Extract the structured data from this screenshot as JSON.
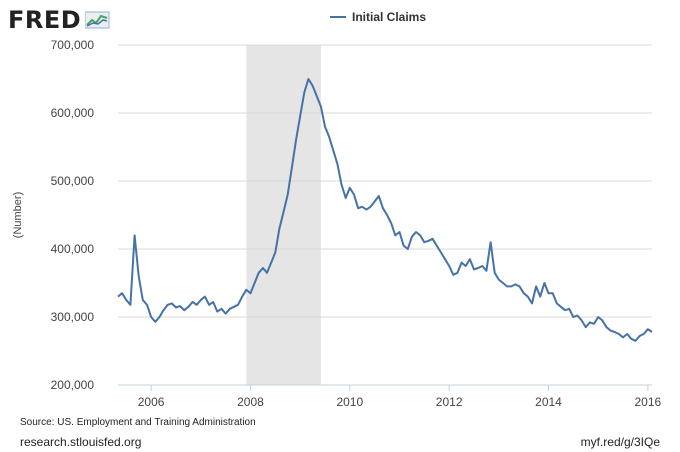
{
  "logo": {
    "text": "FRED",
    "icon": "fred-chart-logo-icon"
  },
  "legend": {
    "label": "Initial Claims",
    "color": "#4572a7"
  },
  "source": "Source: US. Employment and Training Administration",
  "footer": {
    "left": "research.stlouisfed.org",
    "right": "myf.red/g/3IQe"
  },
  "chart_data": {
    "type": "line",
    "title": "",
    "xlabel": "",
    "ylabel": "(Number)",
    "x_ticks": [
      "2006",
      "2008",
      "2010",
      "2012",
      "2014",
      "2016"
    ],
    "y_ticks": [
      "200,000",
      "300,000",
      "400,000",
      "500,000",
      "600,000",
      "700,000"
    ],
    "xlim": [
      "2005-05",
      "2016-02"
    ],
    "ylim": [
      200000,
      700000
    ],
    "grid": "horizontal",
    "legend_position": "top",
    "recession_shading": [
      [
        "2007-12",
        "2009-06"
      ]
    ],
    "series": [
      {
        "name": "Initial Claims",
        "color": "#4572a7",
        "points": [
          [
            "2005-05",
            330000
          ],
          [
            "2005-06",
            335000
          ],
          [
            "2005-07",
            325000
          ],
          [
            "2005-08",
            318000
          ],
          [
            "2005-09",
            420000
          ],
          [
            "2005-10",
            360000
          ],
          [
            "2005-11",
            325000
          ],
          [
            "2005-12",
            318000
          ],
          [
            "2006-01",
            300000
          ],
          [
            "2006-02",
            293000
          ],
          [
            "2006-03",
            300000
          ],
          [
            "2006-04",
            310000
          ],
          [
            "2006-05",
            318000
          ],
          [
            "2006-06",
            320000
          ],
          [
            "2006-07",
            314000
          ],
          [
            "2006-08",
            316000
          ],
          [
            "2006-09",
            310000
          ],
          [
            "2006-10",
            315000
          ],
          [
            "2006-11",
            322000
          ],
          [
            "2006-12",
            318000
          ],
          [
            "2007-01",
            325000
          ],
          [
            "2007-02",
            330000
          ],
          [
            "2007-03",
            318000
          ],
          [
            "2007-04",
            322000
          ],
          [
            "2007-05",
            308000
          ],
          [
            "2007-06",
            312000
          ],
          [
            "2007-07",
            305000
          ],
          [
            "2007-08",
            312000
          ],
          [
            "2007-09",
            315000
          ],
          [
            "2007-10",
            318000
          ],
          [
            "2007-11",
            330000
          ],
          [
            "2007-12",
            340000
          ],
          [
            "2008-01",
            335000
          ],
          [
            "2008-02",
            350000
          ],
          [
            "2008-03",
            365000
          ],
          [
            "2008-04",
            372000
          ],
          [
            "2008-05",
            365000
          ],
          [
            "2008-06",
            380000
          ],
          [
            "2008-07",
            395000
          ],
          [
            "2008-08",
            430000
          ],
          [
            "2008-09",
            455000
          ],
          [
            "2008-10",
            480000
          ],
          [
            "2008-11",
            520000
          ],
          [
            "2008-12",
            560000
          ],
          [
            "2009-01",
            595000
          ],
          [
            "2009-02",
            630000
          ],
          [
            "2009-03",
            650000
          ],
          [
            "2009-04",
            640000
          ],
          [
            "2009-05",
            625000
          ],
          [
            "2009-06",
            610000
          ],
          [
            "2009-07",
            580000
          ],
          [
            "2009-08",
            565000
          ],
          [
            "2009-09",
            545000
          ],
          [
            "2009-10",
            525000
          ],
          [
            "2009-11",
            495000
          ],
          [
            "2009-12",
            475000
          ],
          [
            "2010-01",
            490000
          ],
          [
            "2010-02",
            480000
          ],
          [
            "2010-03",
            460000
          ],
          [
            "2010-04",
            462000
          ],
          [
            "2010-05",
            458000
          ],
          [
            "2010-06",
            462000
          ],
          [
            "2010-07",
            470000
          ],
          [
            "2010-08",
            478000
          ],
          [
            "2010-09",
            460000
          ],
          [
            "2010-10",
            450000
          ],
          [
            "2010-11",
            438000
          ],
          [
            "2010-12",
            420000
          ],
          [
            "2011-01",
            425000
          ],
          [
            "2011-02",
            405000
          ],
          [
            "2011-03",
            400000
          ],
          [
            "2011-04",
            418000
          ],
          [
            "2011-05",
            425000
          ],
          [
            "2011-06",
            420000
          ],
          [
            "2011-07",
            410000
          ],
          [
            "2011-08",
            412000
          ],
          [
            "2011-09",
            415000
          ],
          [
            "2011-10",
            405000
          ],
          [
            "2011-11",
            395000
          ],
          [
            "2011-12",
            385000
          ],
          [
            "2012-01",
            375000
          ],
          [
            "2012-02",
            362000
          ],
          [
            "2012-03",
            365000
          ],
          [
            "2012-04",
            380000
          ],
          [
            "2012-05",
            375000
          ],
          [
            "2012-06",
            385000
          ],
          [
            "2012-07",
            370000
          ],
          [
            "2012-08",
            372000
          ],
          [
            "2012-09",
            375000
          ],
          [
            "2012-10",
            368000
          ],
          [
            "2012-11",
            410000
          ],
          [
            "2012-12",
            365000
          ],
          [
            "2013-01",
            355000
          ],
          [
            "2013-02",
            350000
          ],
          [
            "2013-03",
            345000
          ],
          [
            "2013-04",
            345000
          ],
          [
            "2013-05",
            348000
          ],
          [
            "2013-06",
            345000
          ],
          [
            "2013-07",
            335000
          ],
          [
            "2013-08",
            330000
          ],
          [
            "2013-09",
            320000
          ],
          [
            "2013-10",
            345000
          ],
          [
            "2013-11",
            330000
          ],
          [
            "2013-12",
            350000
          ],
          [
            "2014-01",
            335000
          ],
          [
            "2014-02",
            335000
          ],
          [
            "2014-03",
            320000
          ],
          [
            "2014-04",
            315000
          ],
          [
            "2014-05",
            310000
          ],
          [
            "2014-06",
            312000
          ],
          [
            "2014-07",
            300000
          ],
          [
            "2014-08",
            302000
          ],
          [
            "2014-09",
            295000
          ],
          [
            "2014-10",
            285000
          ],
          [
            "2014-11",
            292000
          ],
          [
            "2014-12",
            290000
          ],
          [
            "2015-01",
            300000
          ],
          [
            "2015-02",
            295000
          ],
          [
            "2015-03",
            285000
          ],
          [
            "2015-04",
            280000
          ],
          [
            "2015-05",
            278000
          ],
          [
            "2015-06",
            275000
          ],
          [
            "2015-07",
            270000
          ],
          [
            "2015-08",
            275000
          ],
          [
            "2015-09",
            268000
          ],
          [
            "2015-10",
            265000
          ],
          [
            "2015-11",
            272000
          ],
          [
            "2015-12",
            275000
          ],
          [
            "2016-01",
            282000
          ],
          [
            "2016-02",
            278000
          ]
        ]
      }
    ]
  }
}
